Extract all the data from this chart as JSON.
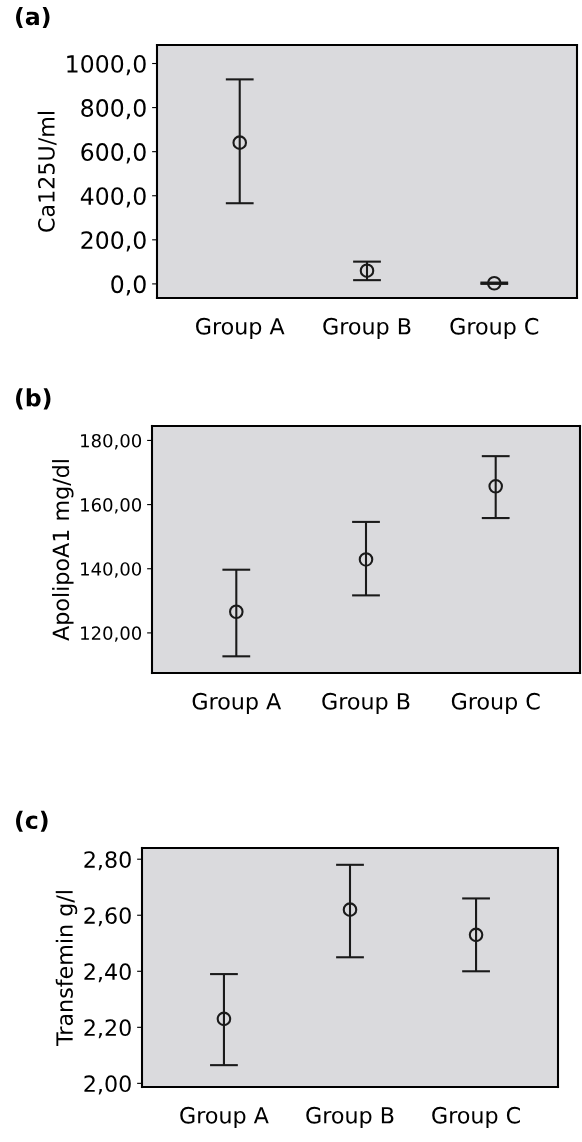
{
  "chart_data": [
    {
      "type": "scatter",
      "title": "(a)",
      "ylabel": "Ca125U/ml",
      "categories": [
        "Group A",
        "Group B",
        "Group C"
      ],
      "marker": "circle",
      "grid": false,
      "legend": false,
      "series": [
        {
          "color": "#1a1a1a",
          "values": [
            641,
            60,
            3
          ],
          "errors": [
            [
              366,
              928
            ],
            [
              17,
              101
            ],
            [
              0,
              6
            ]
          ]
        }
      ],
      "ylim": [
        -64,
        1084
      ],
      "yticks": [
        {
          "value": 0,
          "label": "0,0"
        },
        {
          "value": 200,
          "label": "200,0"
        },
        {
          "value": 400,
          "label": "400,0"
        },
        {
          "value": 600,
          "label": "600,0"
        },
        {
          "value": 800,
          "label": "800,0"
        },
        {
          "value": 1000,
          "label": "1000,0"
        }
      ]
    },
    {
      "type": "scatter",
      "title": "(b)",
      "ylabel": "ApolipoA1 mg/dl",
      "categories": [
        "Group A",
        "Group B",
        "Group C"
      ],
      "marker": "circle",
      "grid": false,
      "legend": false,
      "series": [
        {
          "color": "#1a1a1a",
          "values": [
            126.6,
            142.9,
            165.7
          ],
          "errors": [
            [
              112.7,
              139.7
            ],
            [
              131.7,
              154.6
            ],
            [
              155.8,
              175.1
            ]
          ]
        }
      ],
      "ylim": [
        107.5,
        184.5
      ],
      "yticks": [
        {
          "value": 120,
          "label": "120,00"
        },
        {
          "value": 140,
          "label": "140,00"
        },
        {
          "value": 160,
          "label": "160,00"
        },
        {
          "value": 180,
          "label": "180,00"
        }
      ]
    },
    {
      "type": "scatter",
      "title": "(c)",
      "ylabel": "Transfemin g/l",
      "categories": [
        "Group A",
        "Group B",
        "Group C"
      ],
      "marker": "circle",
      "grid": false,
      "legend": false,
      "series": [
        {
          "color": "#1a1a1a",
          "values": [
            2.23,
            2.62,
            2.53
          ],
          "errors": [
            [
              2.065,
              2.39
            ],
            [
              2.45,
              2.78
            ],
            [
              2.4,
              2.66
            ]
          ]
        }
      ],
      "ylim": [
        1.987,
        2.84
      ],
      "yticks": [
        {
          "value": 2.0,
          "label": "2,00"
        },
        {
          "value": 2.2,
          "label": "2,20"
        },
        {
          "value": 2.4,
          "label": "2,40"
        },
        {
          "value": 2.6,
          "label": "2,60"
        },
        {
          "value": 2.8,
          "label": "2,80"
        }
      ]
    }
  ]
}
